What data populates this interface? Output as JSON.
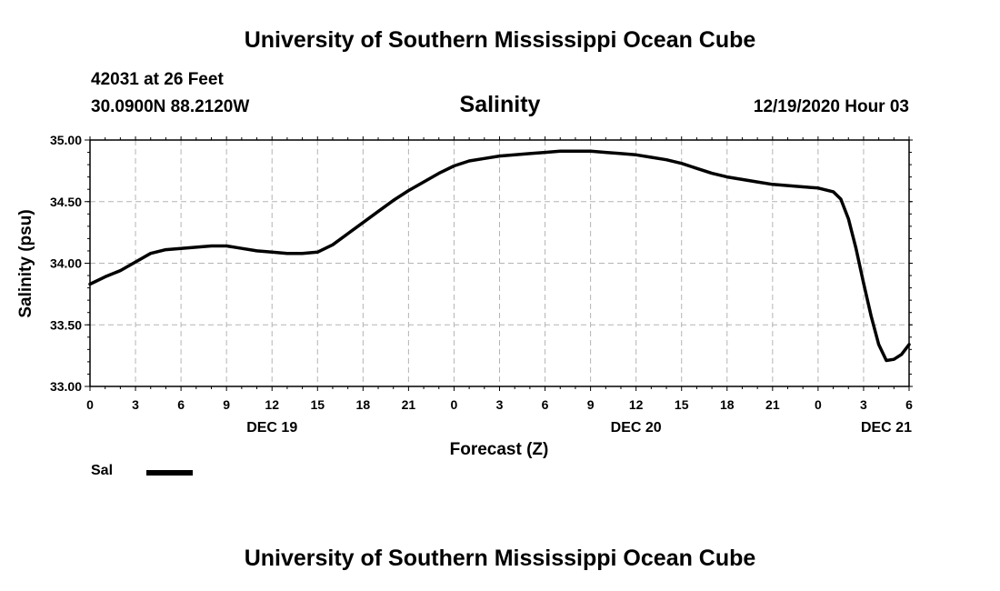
{
  "header": {
    "title": "University of Southern Mississippi Ocean Cube",
    "station": "42031 at 26 Feet",
    "coords": "30.0900N 88.2120W",
    "timestamp": "12/19/2020 Hour 03"
  },
  "footer": {
    "title": "University of Southern Mississippi Ocean Cube"
  },
  "legend": {
    "label": "Sal",
    "color": "#000000"
  },
  "chart_data": {
    "type": "line",
    "title": "Salinity",
    "xlabel": "Forecast (Z)",
    "ylabel": "Salinity (psu)",
    "ylim": [
      33.0,
      35.0
    ],
    "xlim": [
      0,
      54
    ],
    "grid": true,
    "y_ticks": [
      {
        "value": 33.0,
        "label": "33.00"
      },
      {
        "value": 33.5,
        "label": "33.50"
      },
      {
        "value": 34.0,
        "label": "34.00"
      },
      {
        "value": 34.5,
        "label": "34.50"
      },
      {
        "value": 35.0,
        "label": "35.00"
      }
    ],
    "x_ticks": [
      {
        "value": 0,
        "label": "0"
      },
      {
        "value": 3,
        "label": "3"
      },
      {
        "value": 6,
        "label": "6"
      },
      {
        "value": 9,
        "label": "9"
      },
      {
        "value": 12,
        "label": "12"
      },
      {
        "value": 15,
        "label": "15"
      },
      {
        "value": 18,
        "label": "18"
      },
      {
        "value": 21,
        "label": "21"
      },
      {
        "value": 24,
        "label": "0"
      },
      {
        "value": 27,
        "label": "3"
      },
      {
        "value": 30,
        "label": "6"
      },
      {
        "value": 33,
        "label": "9"
      },
      {
        "value": 36,
        "label": "12"
      },
      {
        "value": 39,
        "label": "15"
      },
      {
        "value": 42,
        "label": "18"
      },
      {
        "value": 45,
        "label": "21"
      },
      {
        "value": 48,
        "label": "0"
      },
      {
        "value": 51,
        "label": "3"
      },
      {
        "value": 54,
        "label": "6"
      }
    ],
    "date_labels": [
      {
        "value": 12,
        "label": "DEC 19"
      },
      {
        "value": 36,
        "label": "DEC 20"
      },
      {
        "value": 52.5,
        "label": "DEC 21"
      }
    ],
    "series": [
      {
        "name": "Sal",
        "x": [
          0,
          1,
          2,
          3,
          4,
          5,
          6,
          7,
          8,
          9,
          10,
          11,
          12,
          13,
          14,
          15,
          16,
          17,
          18,
          19,
          20,
          21,
          22,
          23,
          24,
          25,
          26,
          27,
          28,
          29,
          30,
          31,
          32,
          33,
          34,
          35,
          36,
          37,
          38,
          39,
          40,
          41,
          42,
          43,
          44,
          45,
          46,
          47,
          48,
          49,
          49.5,
          50,
          50.5,
          51,
          51.5,
          52,
          52.5,
          53,
          53.5,
          54
        ],
        "values": [
          33.83,
          33.89,
          33.94,
          34.01,
          34.08,
          34.11,
          34.12,
          34.13,
          34.14,
          34.14,
          34.12,
          34.1,
          34.09,
          34.08,
          34.08,
          34.09,
          34.15,
          34.24,
          34.33,
          34.42,
          34.51,
          34.59,
          34.66,
          34.73,
          34.79,
          34.83,
          34.85,
          34.87,
          34.88,
          34.89,
          34.9,
          34.91,
          34.91,
          34.91,
          34.9,
          34.89,
          34.88,
          34.86,
          34.84,
          34.81,
          34.77,
          34.73,
          34.7,
          34.68,
          34.66,
          34.64,
          34.63,
          34.62,
          34.61,
          34.58,
          34.52,
          34.36,
          34.12,
          33.84,
          33.57,
          33.34,
          33.21,
          33.22,
          33.26,
          33.34
        ]
      }
    ]
  }
}
